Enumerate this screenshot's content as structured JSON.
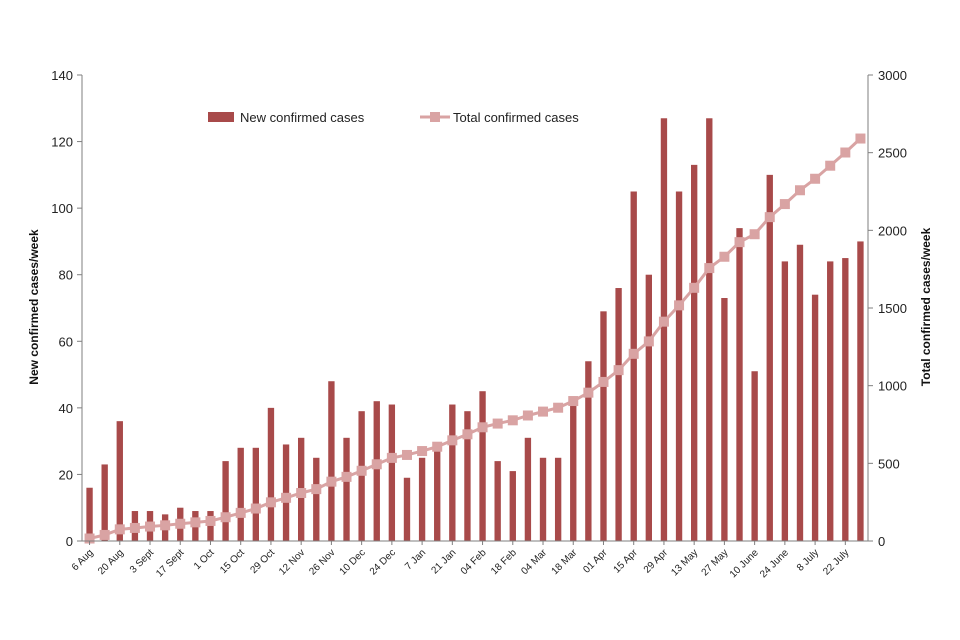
{
  "chart_data": {
    "type": "bar+line",
    "title": "",
    "ylabel_left": "New confirmed cases/week",
    "ylabel_right": "Total confirmed cases/week",
    "ylim_left": [
      0,
      140
    ],
    "ylim_right": [
      0,
      3000
    ],
    "yticks_left": [
      "0",
      "20",
      "40",
      "60",
      "80",
      "100",
      "120",
      "140"
    ],
    "yticks_right": [
      "0",
      "500",
      "1000",
      "1500",
      "2000",
      "2500",
      "3000"
    ],
    "x_labels": [
      "6 Aug",
      "20 Aug",
      "3 Sept",
      "17 Sept",
      "1 Oct",
      "15 Oct",
      "29 Oct",
      "12 Nov",
      "26 Nov",
      "10 Dec",
      "24 Dec",
      "7 Jan",
      "21 Jan",
      "04 Feb",
      "18 Feb",
      "04 Mar",
      "18 Mar",
      "01 Apr",
      "15 Apr",
      "29 Apr",
      "13 May",
      "27 May",
      "10 June",
      "24 June",
      "8 July",
      "22 July"
    ],
    "legend": {
      "bar_label": "New confirmed cases",
      "line_label": "Total confirmed cases"
    },
    "colors": {
      "bar": "#a84a4a",
      "line": "#d9a3a3",
      "axis": "#7f7f7f"
    },
    "series": [
      {
        "name": "New confirmed cases",
        "axis": "left",
        "values": [
          16,
          23,
          36,
          9,
          9,
          8,
          10,
          9,
          9,
          24,
          28,
          28,
          40,
          29,
          31,
          25,
          48,
          31,
          39,
          42,
          41,
          19,
          25,
          28,
          41,
          39,
          45,
          24,
          21,
          31,
          25,
          25,
          43,
          54,
          69,
          76,
          105,
          80,
          127,
          105,
          113,
          127,
          73,
          94,
          51,
          110,
          84,
          89,
          74,
          84,
          85,
          90
        ]
      },
      {
        "name": "Total confirmed cases",
        "axis": "right",
        "values": [
          16,
          39,
          75,
          84,
          93,
          101,
          111,
          120,
          129,
          153,
          181,
          209,
          249,
          278,
          309,
          334,
          382,
          413,
          452,
          494,
          535,
          554,
          579,
          607,
          648,
          687,
          732,
          756,
          777,
          808,
          833,
          858,
          901,
          955,
          1024,
          1100,
          1205,
          1285,
          1412,
          1517,
          1630,
          1757,
          1830,
          1924,
          1975,
          2085,
          2169,
          2258,
          2332,
          2416,
          2501,
          2591
        ]
      }
    ]
  }
}
